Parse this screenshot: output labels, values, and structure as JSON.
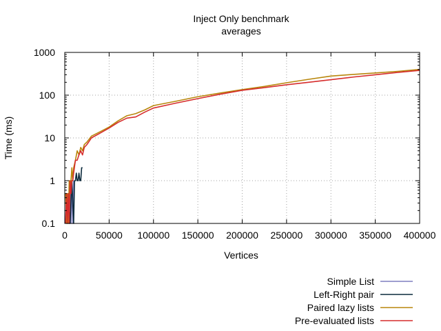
{
  "chart_data": {
    "type": "line",
    "title": "Inject Only benchmark",
    "subtitle": "averages",
    "xlabel": "Vertices",
    "ylabel": "Time (ms)",
    "xlim": [
      0,
      400000
    ],
    "ylim": [
      0.1,
      1000
    ],
    "yscale": "log",
    "grid": true,
    "legend_position": "bottom-right, below plot",
    "x_ticks": [
      "0",
      "50000",
      "100000",
      "150000",
      "200000",
      "250000",
      "300000",
      "350000",
      "400000"
    ],
    "x_tick_values": [
      0,
      50000,
      100000,
      150000,
      200000,
      250000,
      300000,
      350000,
      400000
    ],
    "y_ticks": [
      "0.1",
      "1",
      "10",
      "100",
      "1000"
    ],
    "y_tick_values": [
      0.1,
      1,
      10,
      100,
      1000
    ],
    "series": [
      {
        "name": "Simple List",
        "color": "#7f7fbf",
        "x": [
          1000,
          2000,
          3000,
          4000,
          5000,
          6000,
          7000,
          8000,
          9000,
          10000
        ],
        "y": [
          0.1,
          0.5,
          0.1,
          0.5,
          0.1,
          1,
          0.1,
          1,
          0.1,
          1
        ]
      },
      {
        "name": "Left-Right pair",
        "color": "#0b2a3c",
        "x": [
          2000,
          4000,
          6000,
          8000,
          10000,
          11000,
          12000,
          13000,
          14000,
          15000,
          16000,
          17000,
          18000,
          19000,
          20000
        ],
        "y": [
          0.1,
          0.5,
          0.1,
          1,
          0.1,
          1,
          1,
          1.5,
          1,
          1,
          1.5,
          1,
          1,
          2,
          2
        ]
      },
      {
        "name": "Paired lazy lists",
        "color": "#b8860b",
        "x": [
          1000,
          2000,
          3000,
          4000,
          5000,
          6000,
          7000,
          8000,
          9000,
          10000,
          12000,
          14000,
          16000,
          18000,
          20000,
          22000,
          25000,
          30000,
          40000,
          50000,
          60000,
          70000,
          80000,
          90000,
          100000,
          125000,
          150000,
          175000,
          200000,
          225000,
          250000,
          275000,
          300000,
          325000,
          350000,
          375000,
          400000
        ],
        "y": [
          0.5,
          0.1,
          0.5,
          0.1,
          1,
          0.5,
          1,
          2,
          1,
          2,
          3,
          5,
          4,
          6,
          5,
          7,
          8,
          11,
          14,
          18,
          25,
          33,
          37,
          45,
          57,
          72,
          92,
          112,
          135,
          160,
          195,
          235,
          280,
          305,
          330,
          360,
          400
        ]
      },
      {
        "name": "Pre-evaluated lists",
        "color": "#d62c2c",
        "x": [
          1000,
          2000,
          3000,
          4000,
          5000,
          6000,
          7000,
          8000,
          9000,
          10000,
          12000,
          14000,
          16000,
          18000,
          20000,
          22000,
          25000,
          30000,
          40000,
          50000,
          60000,
          70000,
          80000,
          90000,
          100000,
          125000,
          150000,
          175000,
          200000,
          225000,
          250000,
          275000,
          300000,
          325000,
          350000,
          375000,
          400000
        ],
        "y": [
          0.1,
          0.5,
          0.1,
          0.5,
          0.1,
          1,
          0.5,
          1,
          1,
          1.5,
          3,
          3,
          4,
          5,
          4,
          6,
          7,
          10,
          13,
          17,
          23,
          29,
          31,
          40,
          50,
          65,
          83,
          105,
          130,
          150,
          175,
          200,
          230,
          265,
          300,
          340,
          380
        ]
      }
    ]
  }
}
